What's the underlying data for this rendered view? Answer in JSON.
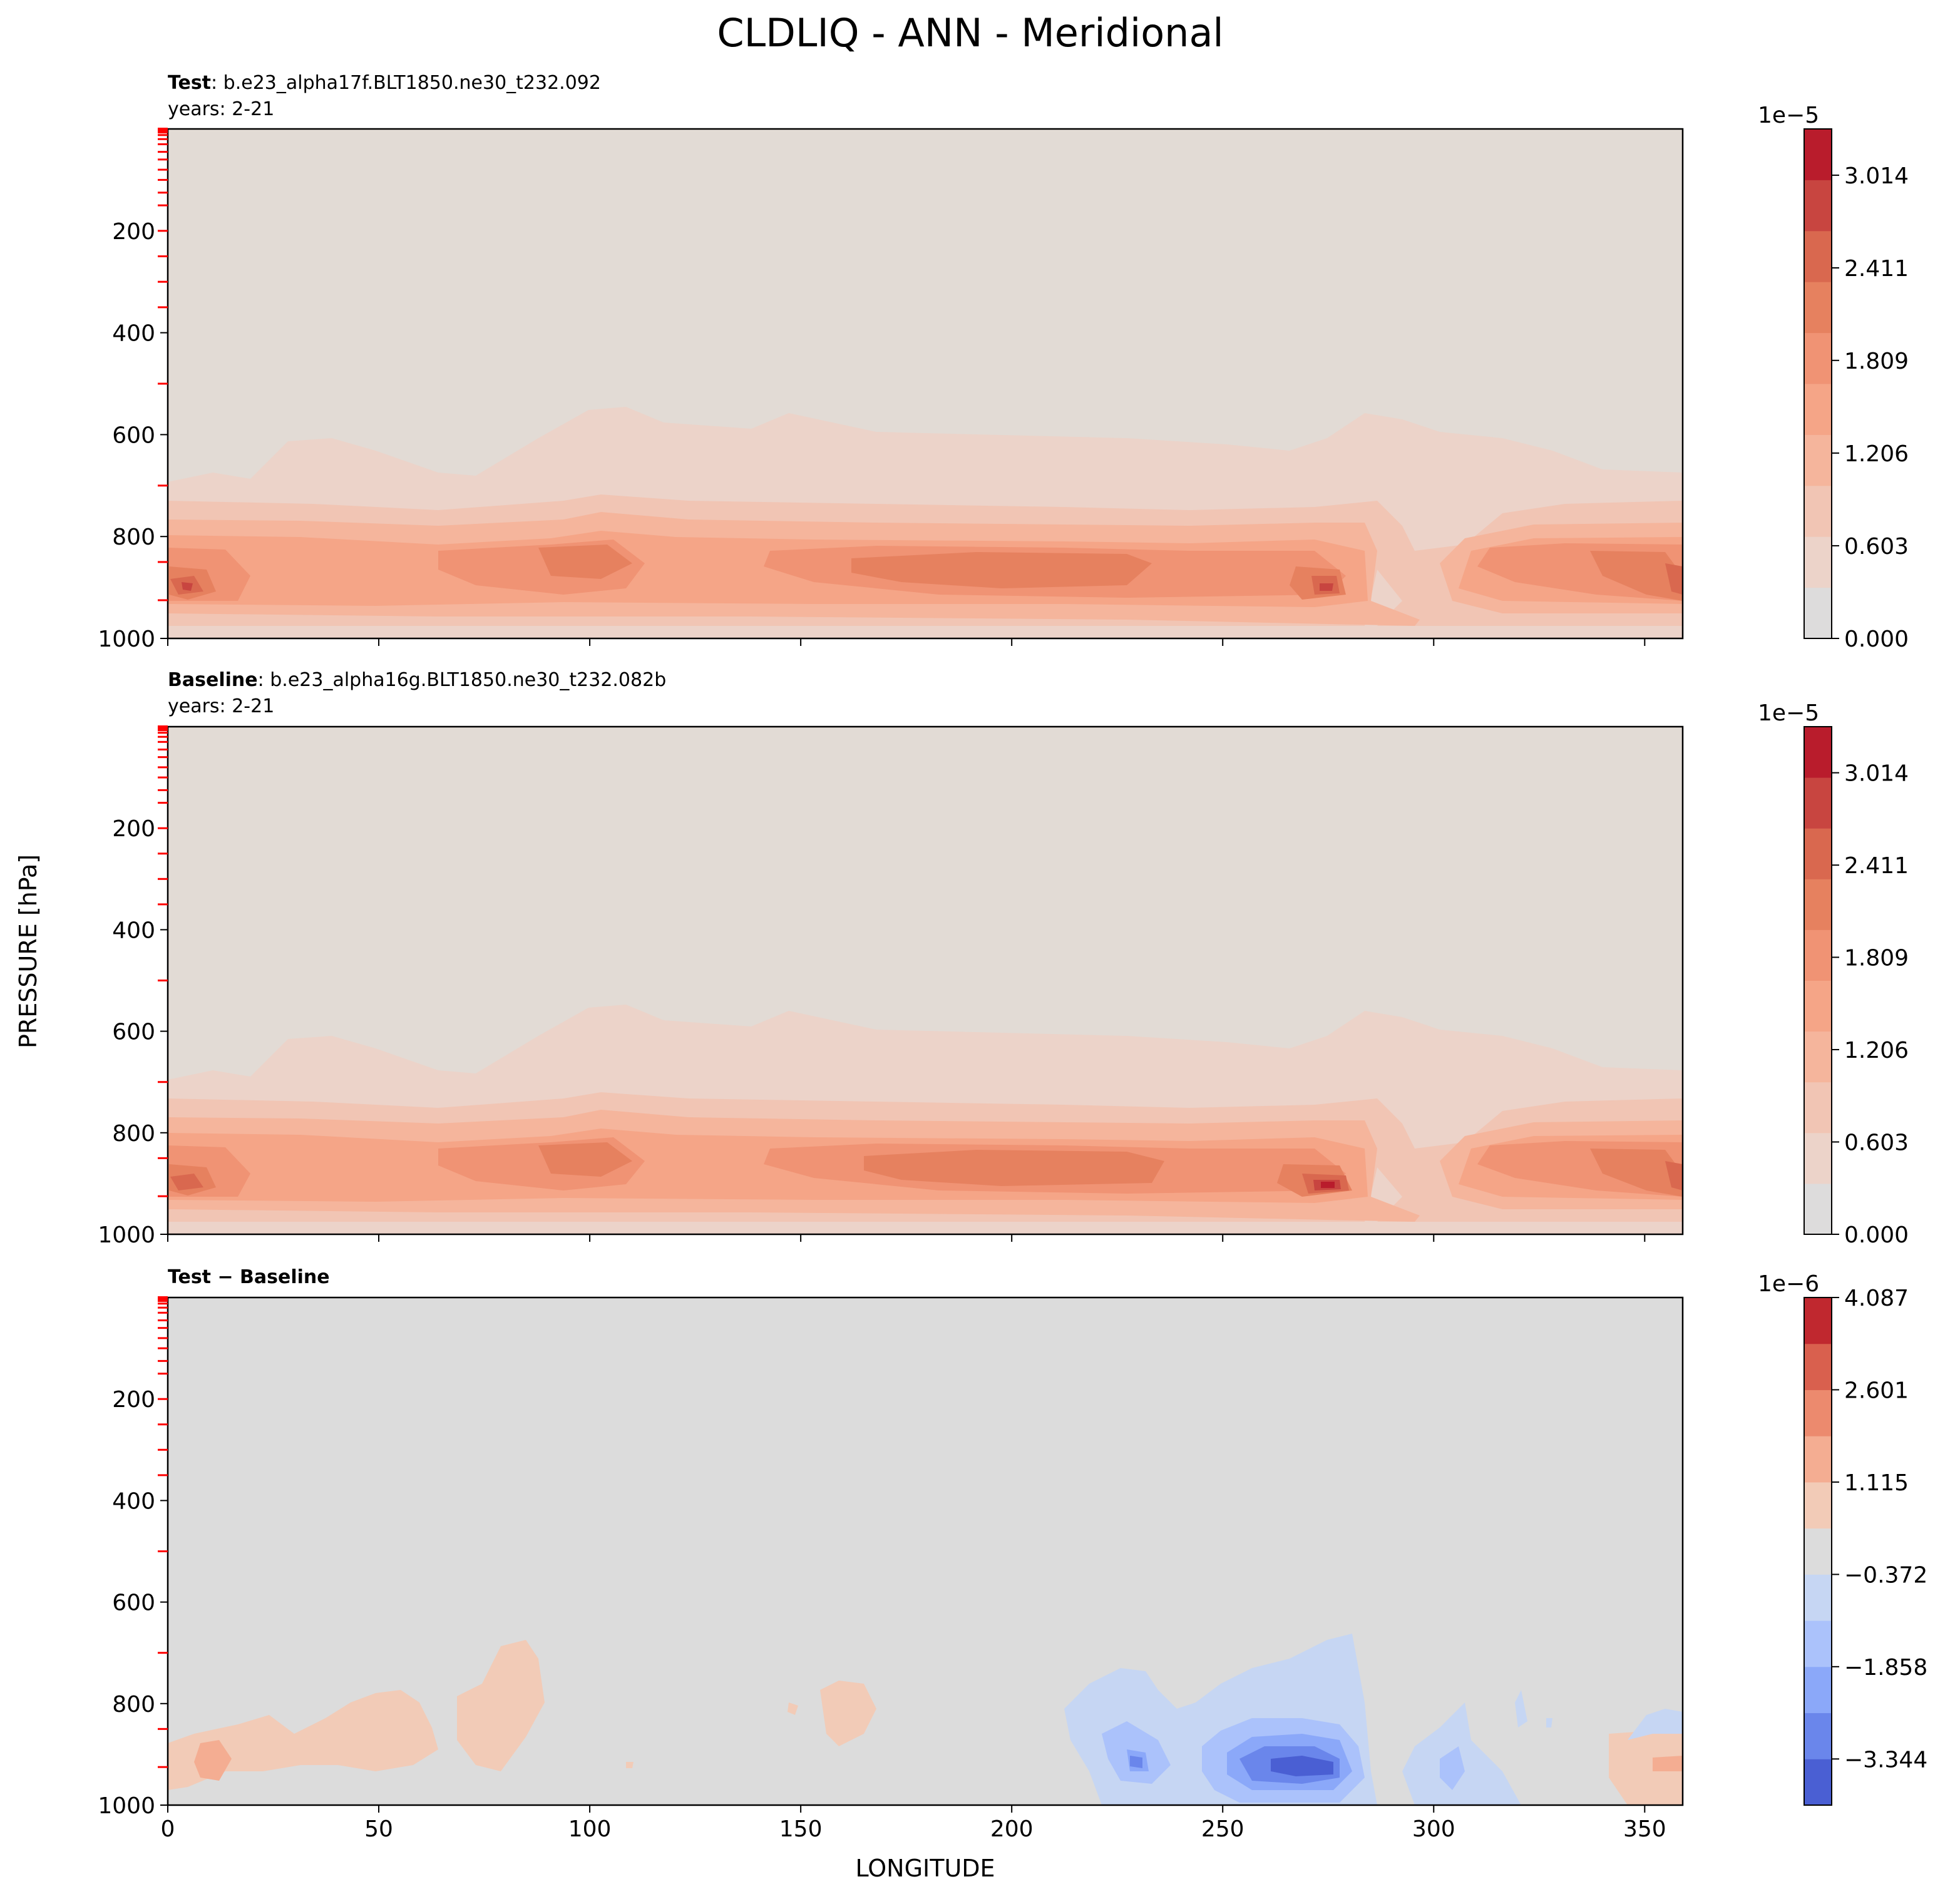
{
  "suptitle": "CLDLIQ - ANN - Meridional",
  "ylabel": "PRESSURE [hPa]",
  "xlabel": "LONGITUDE",
  "chart_data": [
    {
      "type": "heatmap",
      "name_bold": "Test",
      "name_rest": ": b.e23_alpha17f.BLT1850.ne30_t232.092",
      "subtitle": "years: 2-21",
      "x_ticks": [
        "0",
        "50",
        "100",
        "150",
        "200",
        "250",
        "300",
        "350"
      ],
      "xlim": [
        0,
        359
      ],
      "y_ticks": [
        "200",
        "400",
        "600",
        "800",
        "1000"
      ],
      "ylim": [
        1000,
        0
      ],
      "colorbar": {
        "exponent": "1e−5",
        "ticks": [
          "0.000",
          "0.603",
          "1.206",
          "1.809",
          "2.411",
          "3.014"
        ],
        "range": [
          0,
          3.315
        ],
        "colors": [
          "#dddcdc",
          "#ecd3c9",
          "#f1c5b4",
          "#f5b59c",
          "#f5a587",
          "#f09374",
          "#e6815f",
          "#d9684f",
          "#c84540",
          "#b91c2c"
        ]
      },
      "annotation": "contour field: low-level liquid cloud maximum 750–1000 hPa with peaks near 5°E and 275°E"
    },
    {
      "type": "heatmap",
      "name_bold": "Baseline",
      "name_rest": ": b.e23_alpha16g.BLT1850.ne30_t232.082b",
      "subtitle": "years: 2-21",
      "x_ticks": [
        "0",
        "50",
        "100",
        "150",
        "200",
        "250",
        "300",
        "350"
      ],
      "xlim": [
        0,
        359
      ],
      "y_ticks": [
        "200",
        "400",
        "600",
        "800",
        "1000"
      ],
      "ylim": [
        1000,
        0
      ],
      "colorbar": {
        "exponent": "1e−5",
        "ticks": [
          "0.000",
          "0.603",
          "1.206",
          "1.809",
          "2.411",
          "3.014"
        ],
        "range": [
          0,
          3.315
        ],
        "colors": [
          "#dddcdc",
          "#ecd3c9",
          "#f1c5b4",
          "#f5b59c",
          "#f5a587",
          "#f09374",
          "#e6815f",
          "#d9684f",
          "#c84540",
          "#b91c2c"
        ]
      }
    },
    {
      "type": "heatmap",
      "name_bold": "Test − Baseline",
      "name_rest": "",
      "subtitle": "",
      "x_ticks": [
        "0",
        "50",
        "100",
        "150",
        "200",
        "250",
        "300",
        "350"
      ],
      "xlim": [
        0,
        359
      ],
      "y_ticks": [
        "200",
        "400",
        "600",
        "800",
        "1000"
      ],
      "ylim": [
        1000,
        0
      ],
      "colorbar": {
        "exponent": "1e−6",
        "ticks": [
          "4.087",
          "2.601",
          "1.115",
          "−0.372",
          "−1.858",
          "−3.344"
        ],
        "range": [
          -4.087,
          4.087
        ],
        "colors": [
          "#4a5fd3",
          "#6a86eb",
          "#8ba8f9",
          "#abc2fb",
          "#c6d6f3",
          "#dcdcdc",
          "#f2cbb7",
          "#f4ad92",
          "#ec8a6e",
          "#d9604e",
          "#c0282f"
        ]
      }
    }
  ],
  "colors": {
    "background_field": "#e2dbd5",
    "diff_background": "#dcdcdc",
    "level_marker": "#ff0000"
  }
}
